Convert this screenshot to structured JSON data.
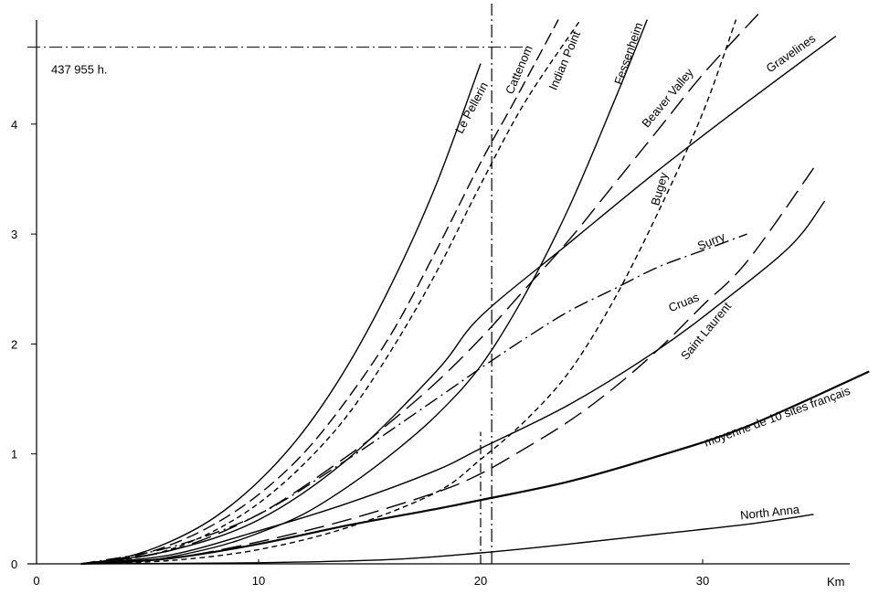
{
  "chart_data": {
    "type": "line",
    "title": "",
    "xlabel": "Km",
    "ylabel": "",
    "xlim": [
      0,
      37
    ],
    "ylim": [
      0,
      4.8
    ],
    "x_ticks": [
      0,
      10,
      20,
      30
    ],
    "y_ticks": [
      0,
      1,
      2,
      3,
      4
    ],
    "grid": false,
    "reference": {
      "x": 20.5,
      "y": 4.7,
      "label": "437 955 h."
    },
    "series": [
      {
        "name": "Le Pellerin",
        "style": "solid",
        "label_angle": -62,
        "x": [
          2,
          4,
          6,
          8,
          10,
          12,
          14,
          16,
          18,
          20
        ],
        "y": [
          0,
          0.06,
          0.2,
          0.42,
          0.75,
          1.2,
          1.8,
          2.55,
          3.45,
          4.55
        ]
      },
      {
        "name": "Cattenom",
        "style": "dashed",
        "label_angle": -67,
        "x": [
          2,
          4,
          6,
          8,
          10,
          12,
          14,
          16,
          18,
          20,
          21.5,
          23.5
        ],
        "y": [
          0,
          0.05,
          0.17,
          0.36,
          0.63,
          1.0,
          1.5,
          2.1,
          2.85,
          3.65,
          4.2,
          4.95
        ]
      },
      {
        "name": "Indian Point",
        "style": "short-dash",
        "label_angle": -67,
        "x": [
          2,
          4,
          6,
          8,
          10,
          12,
          14,
          16,
          18,
          20,
          22,
          24.5
        ],
        "y": [
          0,
          0.04,
          0.13,
          0.3,
          0.55,
          0.9,
          1.35,
          1.95,
          2.65,
          3.45,
          4.2,
          4.95
        ]
      },
      {
        "name": "Fessenheim",
        "style": "solid",
        "label_angle": -71,
        "x": [
          2,
          5,
          8,
          10,
          12,
          14,
          16,
          18,
          20,
          22,
          24,
          26,
          27.5
        ],
        "y": [
          0,
          0.03,
          0.15,
          0.28,
          0.45,
          0.7,
          1.0,
          1.35,
          1.8,
          2.45,
          3.25,
          4.2,
          4.95
        ]
      },
      {
        "name": "Beaver Valley",
        "style": "long-dash",
        "label_angle": -50,
        "x": [
          2,
          6,
          10,
          14,
          16,
          18,
          20,
          22,
          24,
          26,
          28,
          30,
          32.5
        ],
        "y": [
          0,
          0.12,
          0.45,
          0.98,
          1.3,
          1.65,
          2.05,
          2.5,
          2.95,
          3.45,
          3.95,
          4.45,
          5.0
        ]
      },
      {
        "name": "Gravelines",
        "style": "solid",
        "label_angle": -35,
        "x": [
          2,
          6,
          10,
          14,
          18,
          20,
          24,
          28,
          32,
          36
        ],
        "y": [
          0,
          0.12,
          0.4,
          0.95,
          1.75,
          2.25,
          2.92,
          3.58,
          4.2,
          4.8
        ]
      },
      {
        "name": "Bugey",
        "style": "short-dash",
        "label_angle": -74,
        "x": [
          2,
          6,
          10,
          14,
          18,
          20,
          22,
          24,
          26,
          28,
          30,
          31.5
        ],
        "y": [
          0,
          0.03,
          0.13,
          0.33,
          0.65,
          0.95,
          1.3,
          1.75,
          2.4,
          3.2,
          4.1,
          4.95
        ]
      },
      {
        "name": "Surry",
        "style": "dash-dot",
        "label_angle": -22,
        "x": [
          2,
          6,
          10,
          14,
          18,
          20,
          22,
          24,
          26,
          28,
          30,
          32
        ],
        "y": [
          0,
          0.15,
          0.45,
          0.95,
          1.5,
          1.78,
          2.05,
          2.3,
          2.5,
          2.7,
          2.85,
          3.0
        ]
      },
      {
        "name": "Cruas",
        "style": "solid",
        "label_angle": -22,
        "x": [
          2,
          6,
          10,
          14,
          18,
          20,
          24,
          28,
          31,
          34,
          35.5
        ],
        "y": [
          0,
          0.08,
          0.3,
          0.55,
          0.85,
          1.05,
          1.45,
          1.95,
          2.4,
          2.9,
          3.3
        ]
      },
      {
        "name": "Saint Laurent",
        "style": "long-dash",
        "label_angle": -50,
        "x": [
          2,
          6,
          10,
          14,
          18,
          20,
          22,
          24,
          26,
          28,
          30,
          32,
          35
        ],
        "y": [
          0,
          0.05,
          0.2,
          0.4,
          0.65,
          0.82,
          1.05,
          1.3,
          1.6,
          1.95,
          2.35,
          2.75,
          3.6
        ]
      },
      {
        "name": "moyenne de 10 sites français",
        "style": "solid-thick",
        "label_angle": -20,
        "x": [
          2,
          6,
          10,
          14,
          18,
          20,
          24,
          28,
          32,
          37.5
        ],
        "y": [
          0,
          0.05,
          0.18,
          0.35,
          0.5,
          0.58,
          0.75,
          0.98,
          1.25,
          1.75
        ]
      },
      {
        "name": "North Anna",
        "style": "solid",
        "label_angle": -6,
        "x": [
          2,
          10,
          16,
          20,
          24,
          28,
          32,
          35
        ],
        "y": [
          0,
          0.01,
          0.04,
          0.1,
          0.18,
          0.27,
          0.36,
          0.45
        ]
      }
    ]
  }
}
